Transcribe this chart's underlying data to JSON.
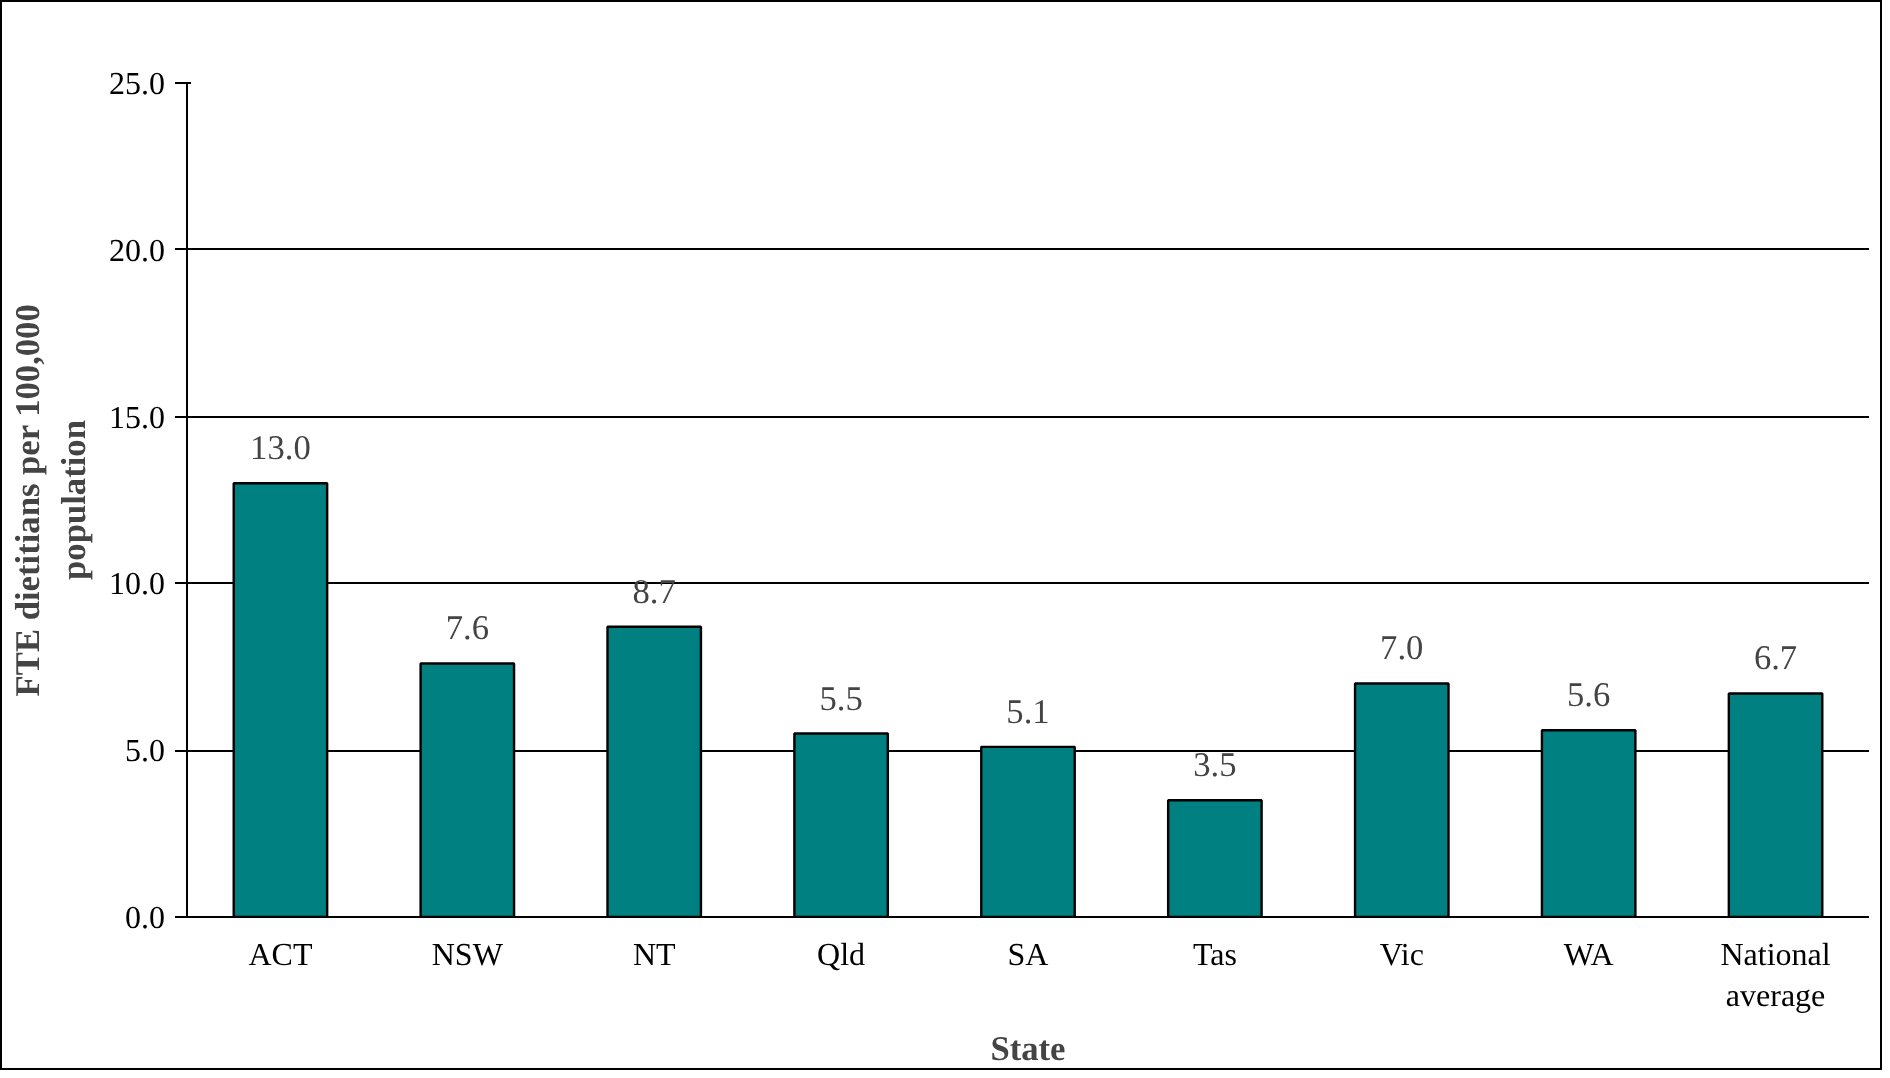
{
  "chart_data": {
    "type": "bar",
    "xlabel": "State",
    "ylabel": "FTE dietitians per 100,000 population",
    "categories": [
      "ACT",
      "NSW",
      "NT",
      "Qld",
      "SA",
      "Tas",
      "Vic",
      "WA",
      "National average"
    ],
    "values": [
      13.0,
      7.6,
      8.7,
      5.5,
      5.1,
      3.5,
      7.0,
      5.6,
      6.7
    ],
    "value_labels": [
      "13.0",
      "7.6",
      "8.7",
      "5.5",
      "5.1",
      "3.5",
      "7.0",
      "5.6",
      "6.7"
    ],
    "color": "#008080",
    "ylim": [
      0,
      25
    ],
    "yticks": [
      {
        "value": 0,
        "label": "0.0"
      },
      {
        "value": 5,
        "label": "5.0"
      },
      {
        "value": 10,
        "label": "10.0"
      },
      {
        "value": 15,
        "label": "15.0"
      },
      {
        "value": 20,
        "label": "20.0"
      },
      {
        "value": 25,
        "label": "25.0"
      }
    ],
    "grid": "y"
  }
}
